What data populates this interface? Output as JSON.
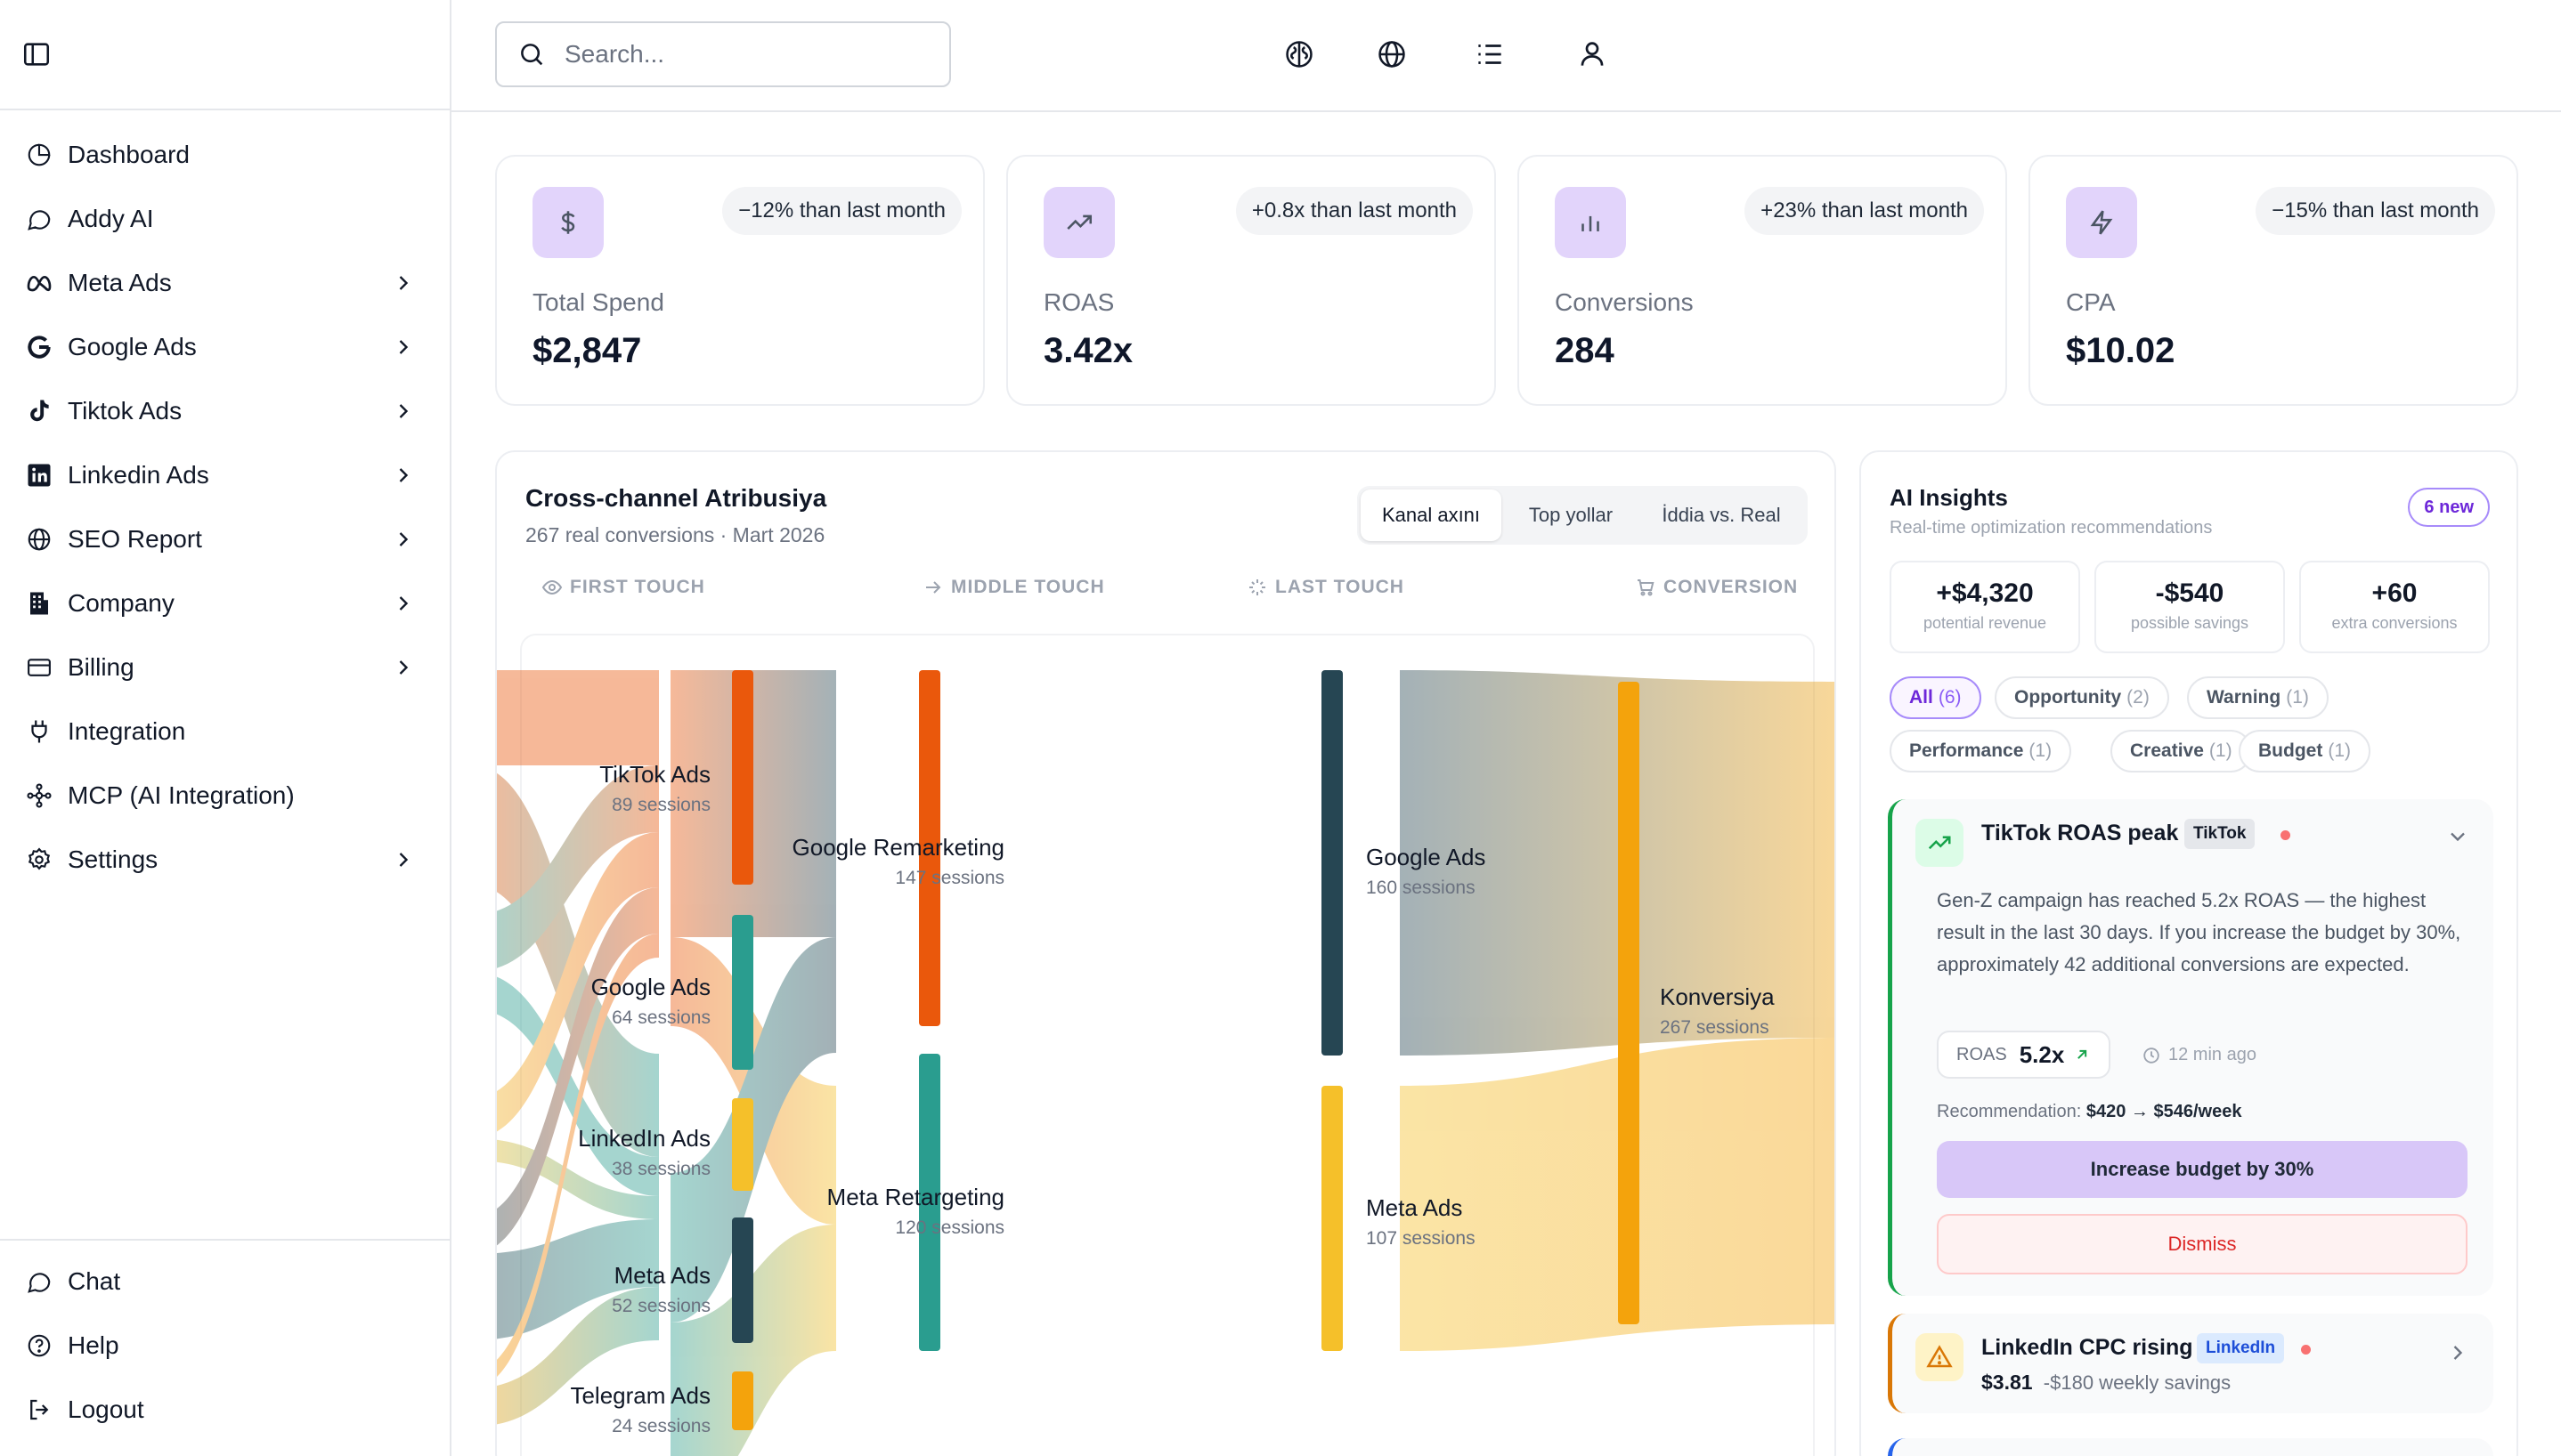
{
  "search": {
    "placeholder": "Search..."
  },
  "sidebar": {
    "items": [
      {
        "label": "Dashboard",
        "icon": "dashboard-icon",
        "chevron": false
      },
      {
        "label": "Addy AI",
        "icon": "chat-bubble-icon",
        "chevron": false
      },
      {
        "label": "Meta Ads",
        "icon": "meta-icon",
        "chevron": true
      },
      {
        "label": "Google Ads",
        "icon": "google-icon",
        "chevron": true
      },
      {
        "label": "Tiktok Ads",
        "icon": "tiktok-icon",
        "chevron": true
      },
      {
        "label": "Linkedin Ads",
        "icon": "linkedin-icon",
        "chevron": true
      },
      {
        "label": "SEO Report",
        "icon": "globe-icon",
        "chevron": true
      },
      {
        "label": "Company",
        "icon": "building-icon",
        "chevron": true
      },
      {
        "label": "Billing",
        "icon": "credit-card-icon",
        "chevron": true
      },
      {
        "label": "Integration",
        "icon": "plug-icon",
        "chevron": false
      },
      {
        "label": "MCP (AI Integration)",
        "icon": "network-icon",
        "chevron": false
      },
      {
        "label": "Settings",
        "icon": "gear-icon",
        "chevron": true
      }
    ],
    "bottom": [
      {
        "label": "Chat",
        "icon": "chat-bubble-icon"
      },
      {
        "label": "Help",
        "icon": "help-circle-icon"
      },
      {
        "label": "Logout",
        "icon": "logout-icon"
      }
    ]
  },
  "header": {
    "icons": [
      "brain-icon",
      "globe-icon",
      "list-icon",
      "user-icon"
    ]
  },
  "kpis": [
    {
      "label": "Total Spend",
      "value": "$2,847",
      "delta": "−12% than last month",
      "icon": "dollar-icon"
    },
    {
      "label": "ROAS",
      "value": "3.42x",
      "delta": "+0.8x than last month",
      "icon": "trending-up-icon"
    },
    {
      "label": "Conversions",
      "value": "284",
      "delta": "+23% than last month",
      "icon": "bar-chart-icon"
    },
    {
      "label": "CPA",
      "value": "$10.02",
      "delta": "−15% than last month",
      "icon": "bolt-icon"
    }
  ],
  "attribution": {
    "title": "Cross-channel Atribusiya",
    "subtitle": "267 real conversions · Mart 2026",
    "tabs": [
      "Kanal axını",
      "Top yollar",
      "İddia vs. Real"
    ],
    "active_tab": 0,
    "stages": [
      "FIRST TOUCH",
      "MIDDLE TOUCH",
      "LAST TOUCH",
      "CONVERSION"
    ],
    "sources": [
      {
        "name": "TikTok Ads",
        "sessions": "89 sessions",
        "color": "#ea580c"
      },
      {
        "name": "Google Ads",
        "sessions": "64 sessions",
        "color": "#2a9d8f"
      },
      {
        "name": "LinkedIn Ads",
        "sessions": "38 sessions",
        "color": "#f5c02a"
      },
      {
        "name": "Meta Ads",
        "sessions": "52 sessions",
        "color": "#264653"
      },
      {
        "name": "Telegram Ads",
        "sessions": "24 sessions",
        "color": "#f4a30c"
      }
    ],
    "middle": [
      {
        "name": "Google Remarketing",
        "sessions": "147 sessions",
        "color": "#ea580c"
      },
      {
        "name": "Meta Retargeting",
        "sessions": "120 sessions",
        "color": "#2a9d8f"
      }
    ],
    "last": [
      {
        "name": "Google Ads",
        "sessions": "160 sessions",
        "color": "#264653"
      },
      {
        "name": "Meta Ads",
        "sessions": "107 sessions",
        "color": "#f5c02a"
      }
    ],
    "conversion": {
      "name": "Konversiya",
      "sessions": "267 sessions",
      "color": "#f4a30c"
    }
  },
  "insights": {
    "title": "AI Insights",
    "subtitle": "Real-time optimization recommendations",
    "badge": "6 new",
    "stats": [
      {
        "value": "+$4,320",
        "label": "potential revenue"
      },
      {
        "value": "-$540",
        "label": "possible savings"
      },
      {
        "value": "+60",
        "label": "extra conversions"
      }
    ],
    "filters": [
      {
        "label": "All",
        "count": "(6)"
      },
      {
        "label": "Opportunity",
        "count": "(2)"
      },
      {
        "label": "Warning",
        "count": "(1)"
      },
      {
        "label": "Performance",
        "count": "(1)"
      },
      {
        "label": "Creative",
        "count": "(1)"
      },
      {
        "label": "Budget",
        "count": "(1)"
      }
    ],
    "card1": {
      "title": "TikTok ROAS peak",
      "tag": "TikTok",
      "body": "Gen-Z campaign has reached 5.2x ROAS — the highest result in the last 30 days. If you increase the budget by 30%, approximately 42 additional conversions are expected.",
      "metric_label": "ROAS",
      "metric_value": "5.2x",
      "time": "12 min ago",
      "rec_label": "Recommendation:",
      "rec_value": "$420 → $546/week",
      "primary": "Increase budget by 30%",
      "dismiss": "Dismiss"
    },
    "card2": {
      "title": "LinkedIn CPC rising",
      "tag": "LinkedIn",
      "value": "$3.81",
      "note": "-$180 weekly savings"
    }
  }
}
